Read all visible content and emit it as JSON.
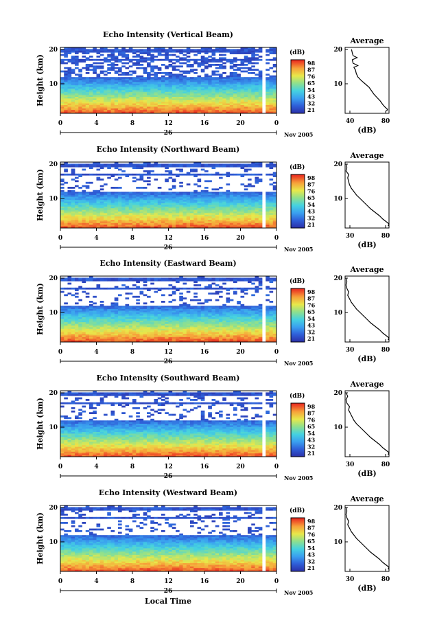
{
  "chart_data": [
    {
      "type": "heatmap",
      "title": "Echo Intensity (Vertical Beam)",
      "ylabel": "Height (km)",
      "yticks": [
        "20",
        "10"
      ],
      "xticks": [
        "0",
        "4",
        "8",
        "12",
        "16",
        "20",
        "0"
      ],
      "day_label": "26",
      "month_label": "Nov 2005",
      "colorbar": {
        "unit": "(dB)",
        "ticks": [
          "98",
          "87",
          "76",
          "65",
          "54",
          "43",
          "32",
          "21"
        ]
      },
      "average": {
        "title": "Average",
        "xticks": [
          "40",
          "80"
        ],
        "xlabel": "(dB)",
        "yticks": [
          "20",
          "10"
        ],
        "xlim": [
          30,
          85
        ],
        "profile": [
          [
            82,
            2
          ],
          [
            83,
            2.6
          ],
          [
            80,
            3.2
          ],
          [
            77,
            4
          ],
          [
            74,
            5
          ],
          [
            70,
            6
          ],
          [
            66,
            7
          ],
          [
            63,
            8
          ],
          [
            60,
            9
          ],
          [
            55,
            10
          ],
          [
            50,
            11
          ],
          [
            46,
            12
          ],
          [
            44,
            13
          ],
          [
            43,
            14
          ],
          [
            41,
            14.8
          ],
          [
            46,
            15.3
          ],
          [
            40,
            16
          ],
          [
            39,
            17
          ],
          [
            45,
            17.6
          ],
          [
            40,
            18.2
          ],
          [
            39,
            19
          ],
          [
            38,
            20
          ]
        ]
      }
    },
    {
      "type": "heatmap",
      "title": "Echo Intensity (Northward Beam)",
      "ylabel": "Height (km)",
      "yticks": [
        "20",
        "10"
      ],
      "xticks": [
        "0",
        "4",
        "8",
        "12",
        "16",
        "20",
        "0"
      ],
      "day_label": "26",
      "month_label": "Nov 2005",
      "colorbar": {
        "unit": "(dB)",
        "ticks": [
          "98",
          "87",
          "76",
          "65",
          "54",
          "43",
          "32",
          "21"
        ]
      },
      "average": {
        "title": "Average",
        "xticks": [
          "30",
          "80"
        ],
        "xlabel": "(dB)",
        "yticks": [
          "20",
          "10"
        ],
        "xlim": [
          30,
          80
        ],
        "profile": [
          [
            79,
            2
          ],
          [
            80,
            2.6
          ],
          [
            77,
            3.2
          ],
          [
            73,
            4
          ],
          [
            69,
            5
          ],
          [
            64,
            6
          ],
          [
            59,
            7
          ],
          [
            55,
            8
          ],
          [
            51,
            9
          ],
          [
            47,
            10
          ],
          [
            43,
            11
          ],
          [
            40,
            12
          ],
          [
            37,
            13
          ],
          [
            35,
            14
          ],
          [
            34,
            15
          ],
          [
            33,
            16
          ],
          [
            34,
            17
          ],
          [
            31,
            18
          ],
          [
            32,
            19
          ],
          [
            31,
            20
          ]
        ]
      }
    },
    {
      "type": "heatmap",
      "title": "Echo Intensity (Eastward Beam)",
      "ylabel": "Height (km)",
      "yticks": [
        "20",
        "10"
      ],
      "xticks": [
        "0",
        "4",
        "8",
        "12",
        "16",
        "20",
        "0"
      ],
      "day_label": "26",
      "month_label": "Nov 2005",
      "colorbar": {
        "unit": "(dB)",
        "ticks": [
          "98",
          "87",
          "76",
          "65",
          "54",
          "43",
          "32",
          "21"
        ]
      },
      "average": {
        "title": "Average",
        "xticks": [
          "30",
          "80"
        ],
        "xlabel": "(dB)",
        "yticks": [
          "20",
          "10"
        ],
        "xlim": [
          30,
          80
        ],
        "profile": [
          [
            79,
            2
          ],
          [
            80,
            2.6
          ],
          [
            77,
            3.2
          ],
          [
            73,
            4
          ],
          [
            69,
            5
          ],
          [
            64,
            6
          ],
          [
            59,
            7
          ],
          [
            55,
            8
          ],
          [
            51,
            9
          ],
          [
            47,
            10
          ],
          [
            43,
            11
          ],
          [
            40,
            12
          ],
          [
            37,
            13
          ],
          [
            35,
            14
          ],
          [
            33,
            15
          ],
          [
            34,
            16
          ],
          [
            32,
            17
          ],
          [
            31,
            18
          ],
          [
            32,
            19
          ],
          [
            31,
            20
          ]
        ]
      }
    },
    {
      "type": "heatmap",
      "title": "Echo Intensity (Southward Beam)",
      "ylabel": "Height (km)",
      "yticks": [
        "20",
        "10"
      ],
      "xticks": [
        "0",
        "4",
        "8",
        "12",
        "16",
        "20",
        "0"
      ],
      "day_label": "26",
      "month_label": "Nov 2005",
      "colorbar": {
        "unit": "(dB)",
        "ticks": [
          "98",
          "87",
          "76",
          "65",
          "54",
          "43",
          "32",
          "21"
        ]
      },
      "average": {
        "title": "Average",
        "xticks": [
          "30",
          "80"
        ],
        "xlabel": "(dB)",
        "yticks": [
          "20",
          "10"
        ],
        "xlim": [
          30,
          80
        ],
        "profile": [
          [
            79,
            2
          ],
          [
            80,
            2.6
          ],
          [
            77,
            3.2
          ],
          [
            73,
            4
          ],
          [
            69,
            5
          ],
          [
            64,
            6
          ],
          [
            59,
            7
          ],
          [
            55,
            8
          ],
          [
            51,
            9
          ],
          [
            47,
            10
          ],
          [
            43,
            11
          ],
          [
            40,
            12
          ],
          [
            38,
            13
          ],
          [
            36,
            14
          ],
          [
            34,
            15
          ],
          [
            35,
            16
          ],
          [
            32,
            17
          ],
          [
            31,
            18
          ],
          [
            33,
            19
          ],
          [
            31,
            20
          ]
        ]
      }
    },
    {
      "type": "heatmap",
      "title": "Echo Intensity (Westward Beam)",
      "ylabel": "Height (km)",
      "yticks": [
        "20",
        "10"
      ],
      "xticks": [
        "0",
        "4",
        "8",
        "12",
        "16",
        "20",
        "0"
      ],
      "day_label": "26",
      "month_label": "Nov 2005",
      "xlabel": "Local Time",
      "colorbar": {
        "unit": "(dB)",
        "ticks": [
          "98",
          "87",
          "76",
          "65",
          "54",
          "43",
          "32",
          "21"
        ]
      },
      "average": {
        "title": "Average",
        "xticks": [
          "30",
          "80"
        ],
        "xlabel": "(dB)",
        "yticks": [
          "20",
          "10"
        ],
        "xlim": [
          30,
          80
        ],
        "profile": [
          [
            79,
            2
          ],
          [
            80,
            2.6
          ],
          [
            77,
            3.2
          ],
          [
            73,
            4
          ],
          [
            69,
            5
          ],
          [
            64,
            6
          ],
          [
            59,
            7
          ],
          [
            55,
            8
          ],
          [
            51,
            9
          ],
          [
            47,
            10
          ],
          [
            43,
            11
          ],
          [
            40,
            12
          ],
          [
            37,
            13
          ],
          [
            35,
            14
          ],
          [
            33,
            15
          ],
          [
            34,
            16
          ],
          [
            32,
            17
          ],
          [
            31,
            18
          ],
          [
            32,
            19
          ],
          [
            31,
            20
          ]
        ]
      }
    }
  ]
}
